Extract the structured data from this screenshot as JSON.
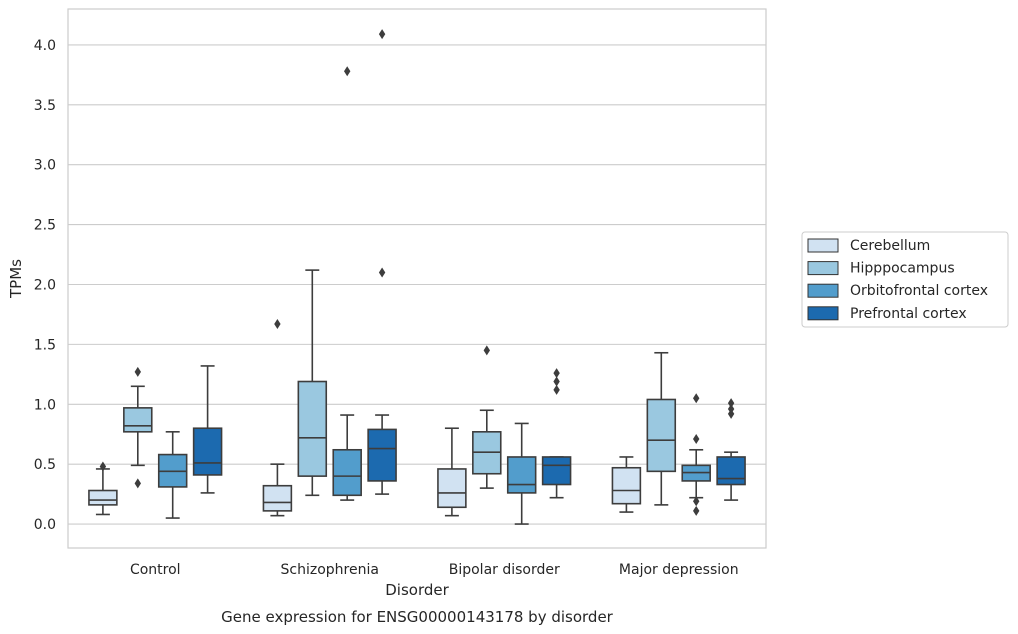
{
  "chart_data": {
    "type": "box",
    "title": "",
    "caption": "Gene expression for ENSG00000143178 by disorder",
    "xlabel": "Disorder",
    "ylabel": "TPMs",
    "ylim": [
      -0.2,
      4.3
    ],
    "yticks": [
      0.0,
      0.5,
      1.0,
      1.5,
      2.0,
      2.5,
      3.0,
      3.5,
      4.0
    ],
    "ytick_labels": [
      "0.0",
      "0.5",
      "1.0",
      "1.5",
      "2.0",
      "2.5",
      "3.0",
      "3.5",
      "4.0"
    ],
    "grid": "horizontal",
    "legend_placement": "center-right, outside plot",
    "categories": [
      "Control",
      "Schizophrenia",
      "Bipolar disorder",
      "Major depression"
    ],
    "series": [
      {
        "name": "Cerebellum",
        "color": "#d1e2f2",
        "boxes": [
          {
            "whislo": 0.08,
            "q1": 0.16,
            "med": 0.2,
            "q3": 0.28,
            "whishi": 0.46,
            "fliers": [
              0.48
            ]
          },
          {
            "whislo": 0.07,
            "q1": 0.11,
            "med": 0.18,
            "q3": 0.32,
            "whishi": 0.5,
            "fliers": [
              1.67
            ]
          },
          {
            "whislo": 0.07,
            "q1": 0.14,
            "med": 0.26,
            "q3": 0.46,
            "whishi": 0.8,
            "fliers": []
          },
          {
            "whislo": 0.1,
            "q1": 0.17,
            "med": 0.28,
            "q3": 0.47,
            "whishi": 0.56,
            "fliers": []
          }
        ]
      },
      {
        "name": "Hipppocampus",
        "color": "#9ac8e0",
        "boxes": [
          {
            "whislo": 0.49,
            "q1": 0.77,
            "med": 0.82,
            "q3": 0.97,
            "whishi": 1.15,
            "fliers": [
              0.34,
              1.27
            ]
          },
          {
            "whislo": 0.24,
            "q1": 0.4,
            "med": 0.72,
            "q3": 1.19,
            "whishi": 2.12,
            "fliers": []
          },
          {
            "whislo": 0.3,
            "q1": 0.42,
            "med": 0.6,
            "q3": 0.77,
            "whishi": 0.95,
            "fliers": [
              1.45
            ]
          },
          {
            "whislo": 0.16,
            "q1": 0.44,
            "med": 0.7,
            "q3": 1.04,
            "whishi": 1.43,
            "fliers": []
          }
        ]
      },
      {
        "name": "Orbitofrontal cortex",
        "color": "#529dcc",
        "boxes": [
          {
            "whislo": 0.05,
            "q1": 0.31,
            "med": 0.44,
            "q3": 0.58,
            "whishi": 0.77,
            "fliers": []
          },
          {
            "whislo": 0.2,
            "q1": 0.24,
            "med": 0.4,
            "q3": 0.62,
            "whishi": 0.91,
            "fliers": [
              3.78
            ]
          },
          {
            "whislo": 0.0,
            "q1": 0.26,
            "med": 0.33,
            "q3": 0.56,
            "whishi": 0.84,
            "fliers": []
          },
          {
            "whislo": 0.22,
            "q1": 0.36,
            "med": 0.43,
            "q3": 0.49,
            "whishi": 0.62,
            "fliers": [
              0.11,
              0.19,
              0.71,
              1.05
            ]
          }
        ]
      },
      {
        "name": "Prefrontal cortex",
        "color": "#1c6aaf",
        "boxes": [
          {
            "whislo": 0.26,
            "q1": 0.41,
            "med": 0.51,
            "q3": 0.8,
            "whishi": 1.32,
            "fliers": []
          },
          {
            "whislo": 0.25,
            "q1": 0.36,
            "med": 0.63,
            "q3": 0.79,
            "whishi": 0.91,
            "fliers": [
              2.1,
              4.09
            ]
          },
          {
            "whislo": 0.22,
            "q1": 0.33,
            "med": 0.49,
            "q3": 0.56,
            "whishi": 0.56,
            "fliers": [
              1.12,
              1.19,
              1.26
            ]
          },
          {
            "whislo": 0.2,
            "q1": 0.33,
            "med": 0.38,
            "q3": 0.56,
            "whishi": 0.6,
            "fliers": [
              0.92,
              0.96,
              1.01
            ]
          }
        ]
      }
    ]
  }
}
